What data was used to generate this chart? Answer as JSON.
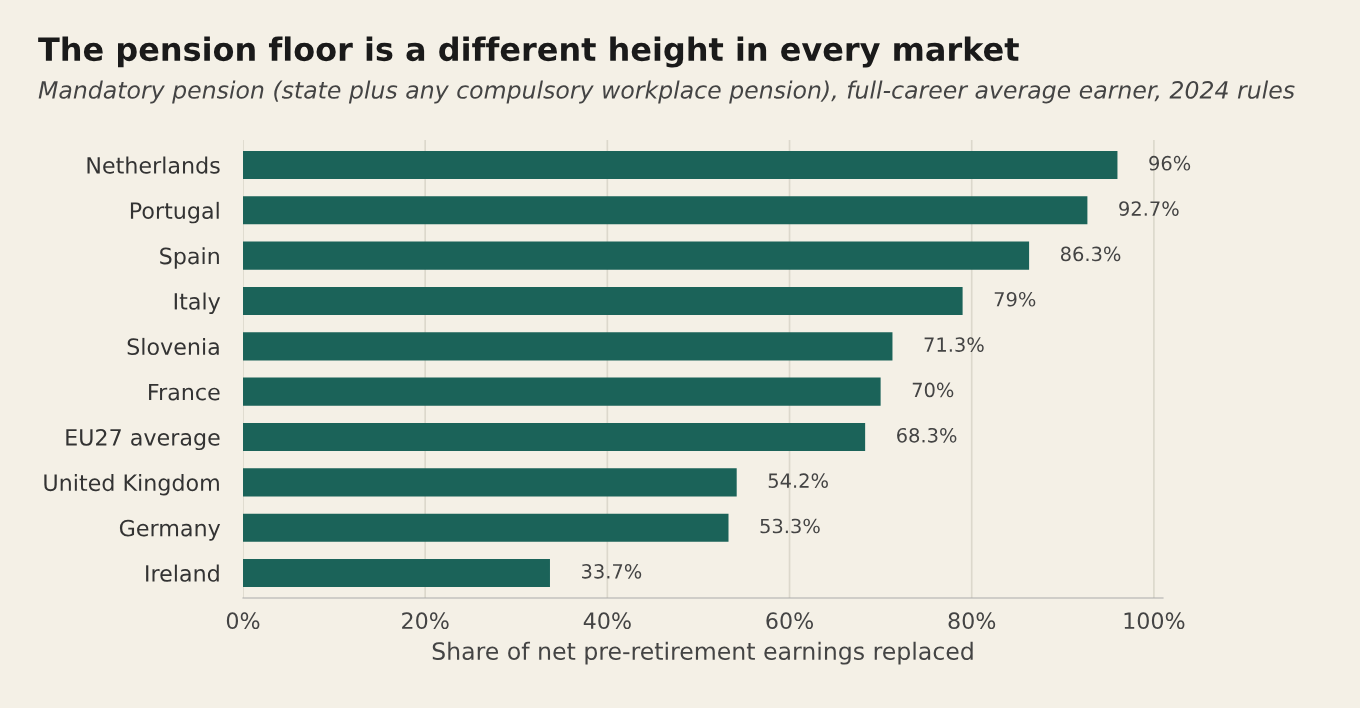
{
  "chart_data": {
    "type": "bar",
    "orientation": "horizontal",
    "title": "The pension floor is a different height in every market",
    "subtitle": "Mandatory pension (state plus any compulsory workplace pension), full-career average earner, 2024 rules",
    "xlabel": "Share of net pre-retirement earnings replaced",
    "categories": [
      "Netherlands",
      "Portugal",
      "Spain",
      "Italy",
      "Slovenia",
      "France",
      "EU27 average",
      "United Kingdom",
      "Germany",
      "Ireland"
    ],
    "values": [
      96,
      92.7,
      86.3,
      79,
      71.3,
      70,
      68.3,
      54.2,
      53.3,
      33.7
    ],
    "value_labels": [
      "96%",
      "92.7%",
      "86.3%",
      "79%",
      "71.3%",
      "70%",
      "68.3%",
      "54.2%",
      "53.3%",
      "33.7%"
    ],
    "color": "#1b6359",
    "xlim": [
      0,
      101
    ],
    "xticks": [
      {
        "value": 0,
        "label": "0%"
      },
      {
        "value": 20,
        "label": "20%"
      },
      {
        "value": 40,
        "label": "40%"
      },
      {
        "value": 60,
        "label": "60%"
      },
      {
        "value": 80,
        "label": "80%"
      },
      {
        "value": 100,
        "label": "100%"
      }
    ],
    "grid": "x",
    "legend": false
  }
}
